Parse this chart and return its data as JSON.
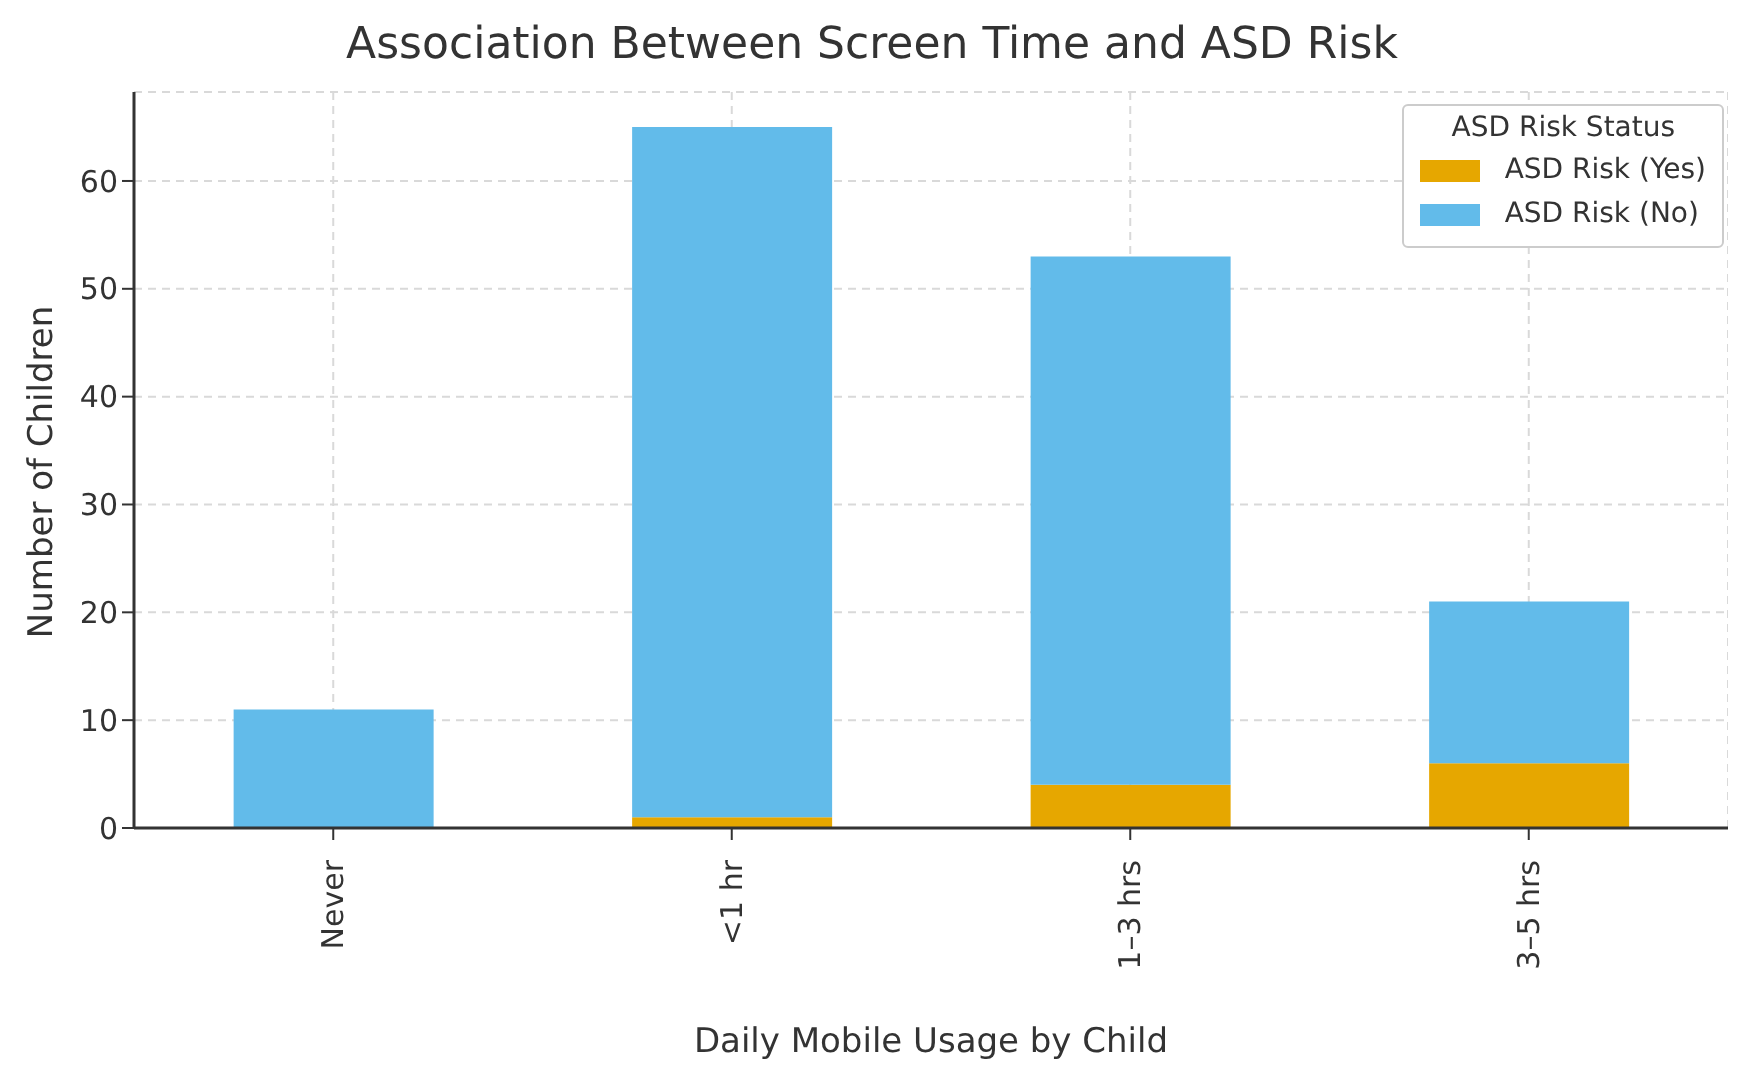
{
  "chart_data": {
    "type": "bar",
    "title": "Association Between Screen Time and ASD Risk",
    "xlabel": "Daily Mobile Usage by Child",
    "ylabel": "Number of Children",
    "legend_title": "ASD Risk Status",
    "categories": [
      "Never",
      "<1 hr",
      "1–3 hrs",
      "3–5 hrs"
    ],
    "series": [
      {
        "name": "ASD Risk (Yes)",
        "color": "#e6a700",
        "values": [
          0,
          1,
          4,
          6
        ]
      },
      {
        "name": "ASD Risk (No)",
        "color": "#62bbea",
        "values": [
          11,
          64,
          49,
          15
        ]
      }
    ],
    "stacked": true,
    "ylim": [
      0,
      68.25
    ],
    "yticks": [
      0,
      10,
      20,
      30,
      40,
      50,
      60
    ],
    "grid": true,
    "legend": "top right"
  }
}
